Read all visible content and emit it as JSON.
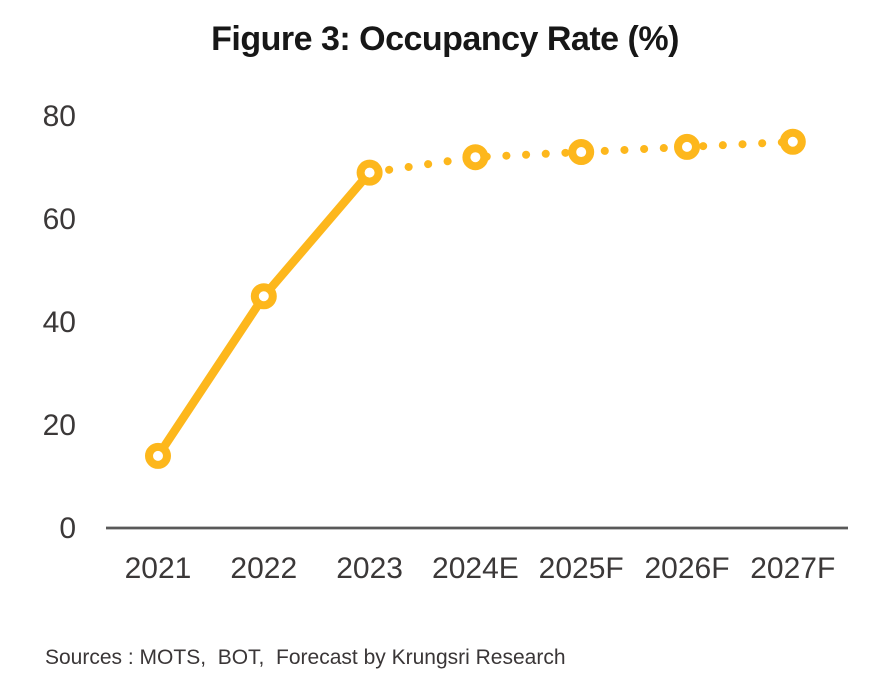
{
  "chart_data": {
    "type": "line",
    "title": "Figure 3: Occupancy Rate (%)",
    "categories": [
      "2021",
      "2022",
      "2023",
      "2024E",
      "2025F",
      "2026F",
      "2027F"
    ],
    "series": [
      {
        "name": "Occupancy Rate (%)",
        "values": [
          14,
          45,
          69,
          72,
          73,
          74,
          75
        ],
        "solid_until_index": 2,
        "style_after": "dotted"
      }
    ],
    "ylim": [
      0,
      80
    ],
    "yticks": [
      0,
      20,
      40,
      60,
      80
    ],
    "grid": false,
    "legend": false,
    "colors": {
      "line": "#FDB71C",
      "marker_fill": "#FFFFFF",
      "axis": "#595959",
      "tick_text": "#3B3838",
      "title_text": "#171717"
    },
    "source_note": "Sources : MOTS,  BOT,  Forecast by Krungsri Research"
  }
}
